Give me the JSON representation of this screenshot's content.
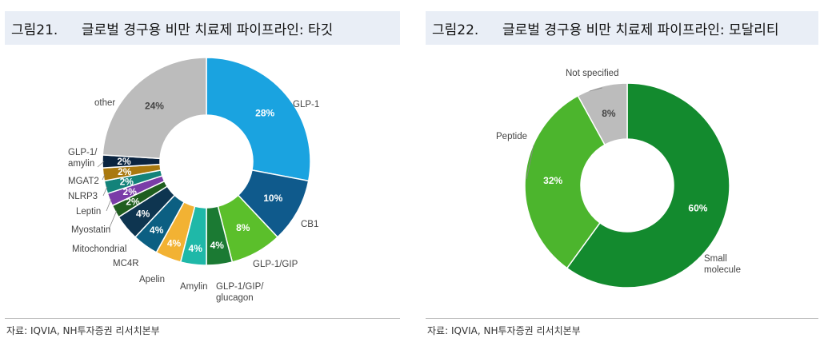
{
  "left": {
    "fig_num": "그림21.",
    "title": "글로벌 경구용 비만 치료제 파이프라인: 타깃",
    "source": "자료: IQVIA, NH투자증권 리서치본부"
  },
  "right": {
    "fig_num": "그림22.",
    "title": "글로벌 경구용 비만 치료제 파이프라인: 모달리티",
    "source": "자료: IQVIA, NH투자증권 리서치본부"
  },
  "chart_data": [
    {
      "type": "pie",
      "donut": true,
      "title": "",
      "slices": [
        {
          "label": "GLP-1",
          "value": 28,
          "value_label": "28%",
          "color": "#1aa3e0"
        },
        {
          "label": "CB1",
          "value": 10,
          "value_label": "10%",
          "color": "#0f5a8c"
        },
        {
          "label": "GLP-1/GIP",
          "value": 8,
          "value_label": "8%",
          "color": "#5bbf2b"
        },
        {
          "label": "GLP-1/GIP/ glucagon",
          "value": 4,
          "value_label": "4%",
          "color": "#1b7a33"
        },
        {
          "label": "Amylin",
          "value": 4,
          "value_label": "4%",
          "color": "#1fb8a8"
        },
        {
          "label": "Apelin",
          "value": 4,
          "value_label": "4%",
          "color": "#f2b233"
        },
        {
          "label": "MC4R",
          "value": 4,
          "value_label": "4%",
          "color": "#0c5f82"
        },
        {
          "label": "Mitochondrial",
          "value": 4,
          "value_label": "4%",
          "color": "#0e3550"
        },
        {
          "label": "Myostatin",
          "value": 2,
          "value_label": "2%",
          "color": "#1f5e1f"
        },
        {
          "label": "Leptin",
          "value": 2,
          "value_label": "2%",
          "color": "#7a3ca8"
        },
        {
          "label": "NLRP3",
          "value": 2,
          "value_label": "2%",
          "color": "#13837a"
        },
        {
          "label": "MGAT2",
          "value": 2,
          "value_label": "2%",
          "color": "#a9790f"
        },
        {
          "label": "GLP-1/ amylin",
          "value": 2,
          "value_label": "2%",
          "color": "#0a2440"
        },
        {
          "label": "other",
          "value": 24,
          "value_label": "24%",
          "color": "#bcbcbc"
        }
      ]
    },
    {
      "type": "pie",
      "donut": true,
      "title": "",
      "slices": [
        {
          "label": "Small molecule",
          "value": 60,
          "value_label": "60%",
          "color": "#138a2e"
        },
        {
          "label": "Peptide",
          "value": 32,
          "value_label": "32%",
          "color": "#4cb52d"
        },
        {
          "label": "Not specified",
          "value": 8,
          "value_label": "8%",
          "color": "#bcbcbc"
        }
      ]
    }
  ]
}
